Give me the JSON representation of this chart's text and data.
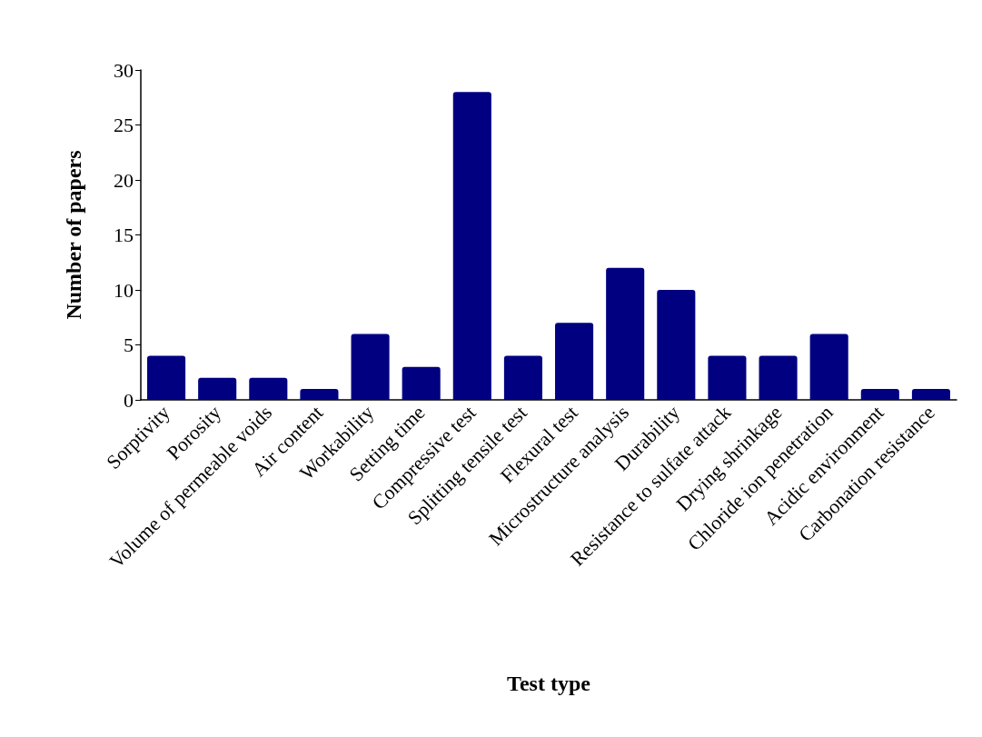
{
  "chart_data": {
    "type": "bar",
    "xlabel": "Test type",
    "ylabel": "Number of papers",
    "categories": [
      "Sorptivity",
      "Porosity",
      "Volume of permeable voids",
      "Air content",
      "Workability",
      "Setting time",
      "Compressive test",
      "Splitting tensile test",
      "Flexural test",
      "Microstructure analysis",
      "Durability",
      "Resistance to sulfate attack",
      "Drying shrinkage",
      "Chloride ion penetration",
      "Acidic environment",
      "Carbonation resistance"
    ],
    "values": [
      4,
      2,
      2,
      1,
      6,
      3,
      28,
      4,
      7,
      12,
      10,
      4,
      4,
      6,
      1,
      1
    ],
    "color": "#000080",
    "ylim": [
      0,
      30
    ],
    "yticks": [
      0,
      5,
      10,
      15,
      20,
      25,
      30
    ],
    "grid": false
  }
}
